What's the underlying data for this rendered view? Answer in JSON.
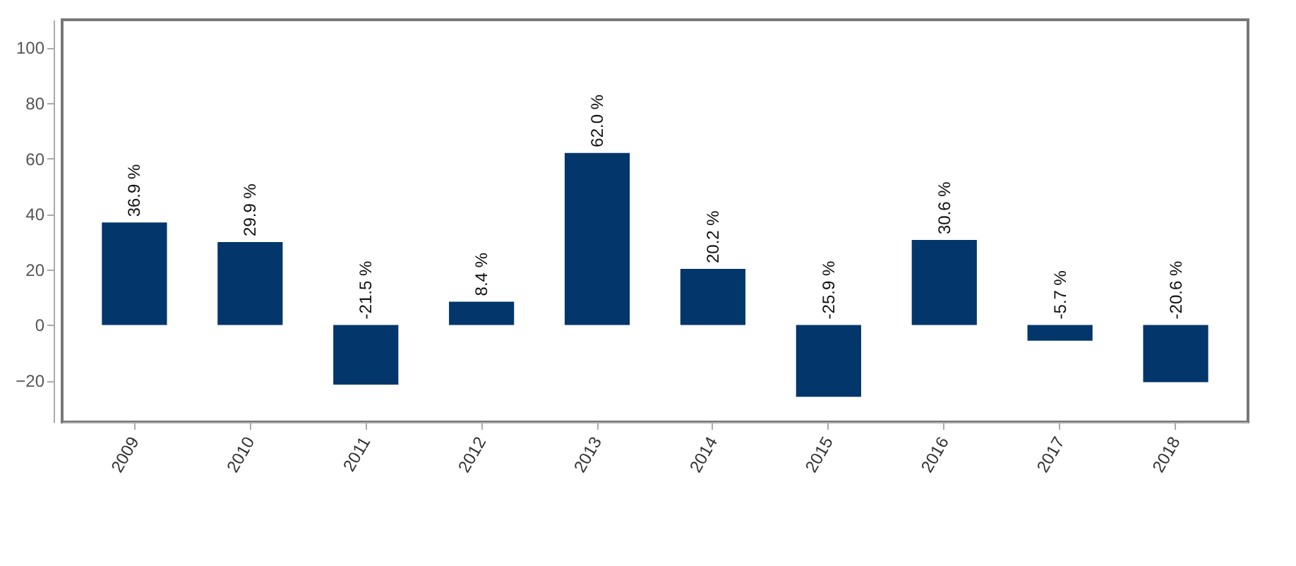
{
  "chart_data": {
    "type": "bar",
    "categories": [
      "2009",
      "2010",
      "2011",
      "2012",
      "2013",
      "2014",
      "2015",
      "2016",
      "2017",
      "2018"
    ],
    "series": [
      {
        "color": "#03366a",
        "values": [
          36.9,
          29.9,
          -21.5,
          8.4,
          62.0,
          20.2,
          -25.9,
          30.6,
          -5.7,
          -20.6
        ],
        "value_labels": [
          "36.9 %",
          "29.9 %",
          "-21.5 %",
          "8.4 %",
          "62.0 %",
          "20.2 %",
          "-25.9 %",
          "30.6 %",
          "-5.7 %",
          "-20.6 %"
        ]
      }
    ],
    "ylim": [
      -35,
      110
    ],
    "yticks": [
      -20,
      0,
      20,
      40,
      60,
      80,
      100
    ],
    "grid": false
  }
}
